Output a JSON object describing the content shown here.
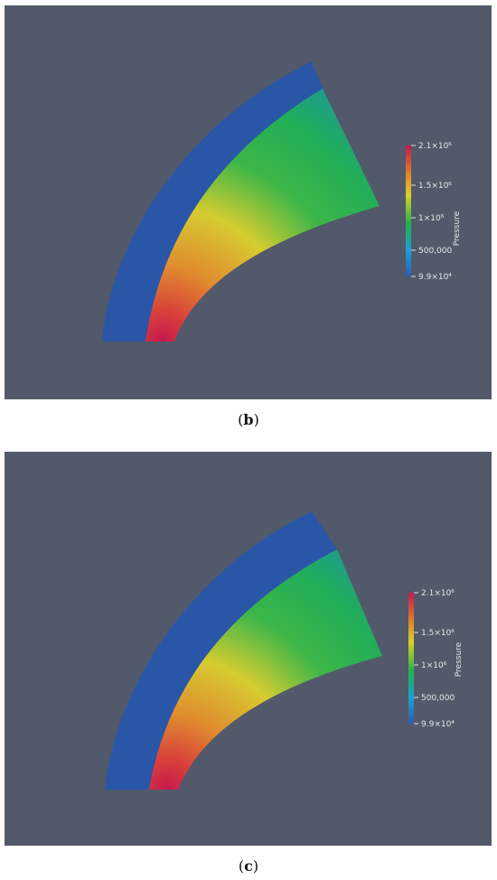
{
  "figure": {
    "panels": [
      {
        "caption": "b",
        "colorbar": {
          "title": "Pressure",
          "ticks": [
            "2.1×10⁶",
            "1.5×10⁶",
            "1×10⁶",
            "500,000",
            "9.9×10⁴"
          ]
        }
      },
      {
        "caption": "c",
        "colorbar": {
          "title": "Pressure",
          "ticks": [
            "2.1×10⁶",
            "1.5×10⁶",
            "1×10⁶",
            "500,000",
            "9.9×10⁴"
          ]
        }
      }
    ],
    "colors": {
      "background": "#52596a",
      "outer_band": "#2a56a8",
      "colormap": [
        "#2b5fae",
        "#1d9fd2",
        "#22b24a",
        "#d8d22a",
        "#e07a2a",
        "#d62d4a",
        "#c4184f"
      ]
    }
  }
}
